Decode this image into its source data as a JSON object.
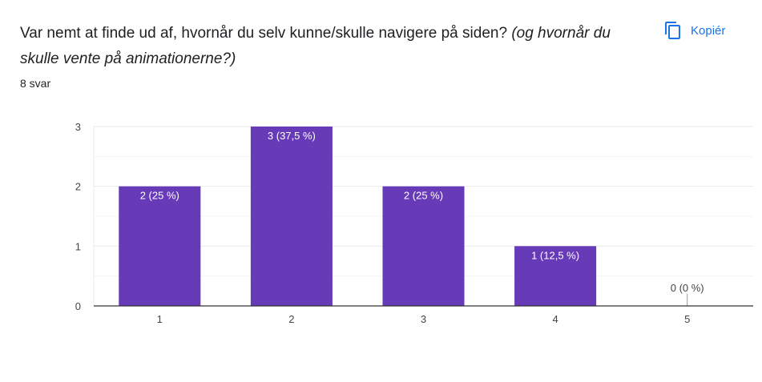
{
  "question": {
    "text": "Var nemt at finde ud af, hvornår du selv kunne/skulle navigere på siden?",
    "italic_text": "(og hvornår du skulle vente på animationerne?)"
  },
  "response_count": "8 svar",
  "copy_button": {
    "label": "Kopiér",
    "icon": "copy-icon"
  },
  "colors": {
    "bar": "#673ab7",
    "accent": "#1a73e8",
    "grid": "#ebebeb",
    "axis": "#333333"
  },
  "chart_data": {
    "type": "bar",
    "categories": [
      "1",
      "2",
      "3",
      "4",
      "5"
    ],
    "values": [
      2,
      3,
      2,
      1,
      0
    ],
    "data_labels": [
      "2 (25 %)",
      "3 (37,5 %)",
      "2 (25 %)",
      "1 (12,5 %)",
      "0 (0 %)"
    ],
    "y_ticks": [
      "0",
      "1",
      "2",
      "3"
    ],
    "ylim": [
      0,
      3
    ],
    "grid": true,
    "title": "",
    "xlabel": "",
    "ylabel": ""
  }
}
